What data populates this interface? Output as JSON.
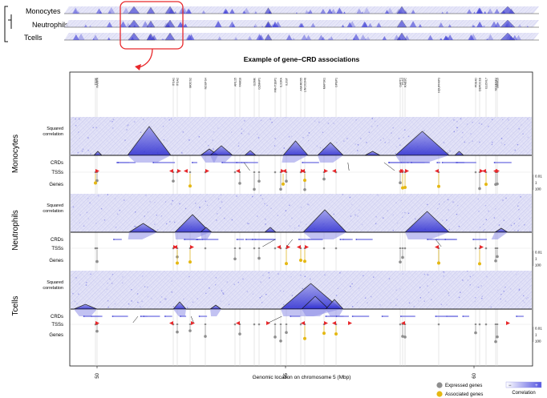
{
  "overview": {
    "labels": [
      "Monocytes",
      "Neutrophils",
      "Tcells"
    ]
  },
  "figure": {
    "title": "Example of gene–CRD associations",
    "xlabel": "Genomic location on chromosome 5 (Mbp)",
    "x_ticks": [
      "50",
      "55",
      "60"
    ],
    "panels": [
      {
        "name": "Monocytes",
        "track_labels": {
          "heat": "Squared\ncorrelation",
          "crds": "CRDs",
          "tsss": "TSSs",
          "genes": "Genes"
        }
      },
      {
        "name": "Neutrophils",
        "track_labels": {
          "heat": "Squared\ncorrelation",
          "crds": "CRDs",
          "tsss": "TSSs",
          "genes": "Genes"
        }
      },
      {
        "name": "Tcells",
        "track_labels": {
          "heat": "Squared\ncorrelation",
          "crds": "CRDs",
          "tsss": "TSSs",
          "genes": "Genes"
        }
      }
    ],
    "pvalue_ticks": [
      "0.01",
      "1",
      "100"
    ],
    "gene_names": [
      "TSSK",
      "RAMPA",
      "ITGA1",
      "ITGA2",
      "MOCS2",
      "NDUFS4",
      "ARL15",
      "FAM18",
      "GZMK",
      "GZMAP1",
      "FRHT1BP1",
      "IL31RA",
      "IL6ST",
      "ANKRD55",
      "LINC01948",
      "MAP3K1",
      "GPBP1",
      "GAPT1",
      "PLK2",
      "RAB3C",
      "NDUFFAP3",
      "PDE4D",
      "DEPDC1B",
      "ELOVL7",
      "NDUFAF2",
      "SMIM15"
    ]
  },
  "legend": {
    "expressed": "Expressed genes",
    "associated": "Associated genes",
    "correlation": "Correlation",
    "minus": "−",
    "plus": "+"
  },
  "colors": {
    "accent_red": "#e8282b",
    "heat_blue": "#3737d8",
    "gene_grey": "#8e8e8e",
    "gene_gold": "#e5b813",
    "link_blue": "#8f8fe8"
  }
}
